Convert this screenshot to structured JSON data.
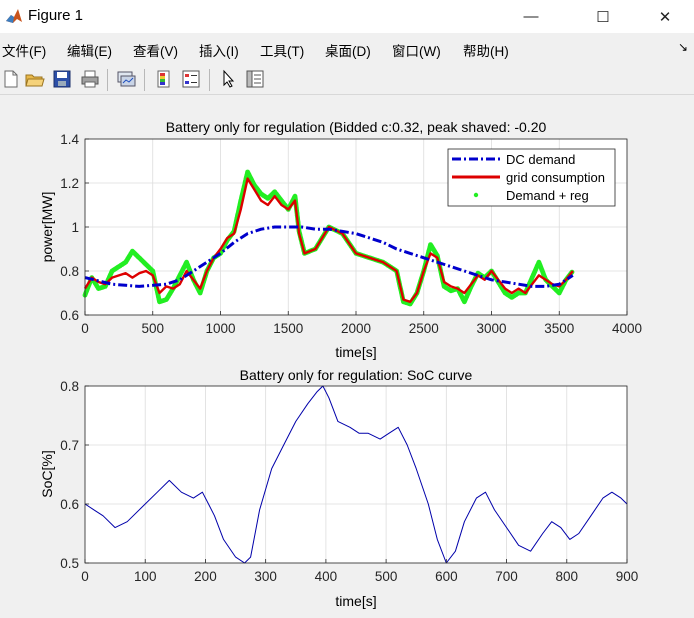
{
  "window": {
    "title": "Figure 1",
    "minimize": "—",
    "maximize": "☐",
    "close": "✕"
  },
  "menu": [
    {
      "label": "文件(F)"
    },
    {
      "label": "编辑(E)"
    },
    {
      "label": "查看(V)"
    },
    {
      "label": "插入(I)"
    },
    {
      "label": "工具(T)"
    },
    {
      "label": "桌面(D)"
    },
    {
      "label": "窗口(W)"
    },
    {
      "label": "帮助(H)"
    }
  ],
  "menu_arrow": "↘",
  "toolbar": [
    {
      "name": "new-figure-icon"
    },
    {
      "name": "open-file-icon"
    },
    {
      "name": "save-icon"
    },
    {
      "name": "print-icon"
    },
    {
      "name": "link-plot-icon"
    },
    {
      "name": "colorbar-icon"
    },
    {
      "name": "legend-icon"
    },
    {
      "name": "pointer-icon"
    },
    {
      "name": "property-editor-icon"
    }
  ],
  "chart_data": [
    {
      "type": "line",
      "title": "Battery only for regulation (Bidded c:0.32, peak shaved: -0.20",
      "xlabel": "time[s]",
      "ylabel": "power[MW]",
      "xlim": [
        0,
        4000
      ],
      "ylim": [
        0.6,
        1.4
      ],
      "xticks": [
        "0",
        "500",
        "1000",
        "1500",
        "2000",
        "2500",
        "3000",
        "3500",
        "4000"
      ],
      "yticks": [
        "0.6",
        "0.8",
        "1",
        "1.2",
        "1.4"
      ],
      "grid": true,
      "legend_position": "top-right",
      "series": [
        {
          "name": "DC demand",
          "color": "#0000cc",
          "style": "dash-dot",
          "x": [
            0,
            200,
            400,
            600,
            700,
            800,
            900,
            1000,
            1100,
            1200,
            1300,
            1400,
            1500,
            1600,
            1700,
            1800,
            1900,
            2000,
            2100,
            2200,
            2300,
            2400,
            2500,
            2600,
            2700,
            2800,
            2900,
            3000,
            3100,
            3200,
            3300,
            3400,
            3500,
            3600
          ],
          "y": [
            0.77,
            0.74,
            0.73,
            0.74,
            0.76,
            0.8,
            0.84,
            0.88,
            0.93,
            0.97,
            0.99,
            1.0,
            1.0,
            1.0,
            0.99,
            0.99,
            0.98,
            0.97,
            0.95,
            0.93,
            0.9,
            0.88,
            0.86,
            0.84,
            0.82,
            0.8,
            0.78,
            0.76,
            0.75,
            0.74,
            0.73,
            0.73,
            0.74,
            0.78
          ]
        },
        {
          "name": "grid consumption",
          "color": "#dd0000",
          "style": "solid",
          "x": [
            0,
            50,
            100,
            150,
            200,
            250,
            300,
            350,
            400,
            450,
            500,
            550,
            600,
            650,
            700,
            750,
            800,
            850,
            900,
            950,
            1000,
            1050,
            1100,
            1150,
            1200,
            1250,
            1300,
            1350,
            1400,
            1450,
            1500,
            1550,
            1580,
            1620,
            1700,
            1800,
            1900,
            2000,
            2100,
            2200,
            2300,
            2350,
            2400,
            2450,
            2500,
            2550,
            2600,
            2650,
            2700,
            2750,
            2800,
            2850,
            2900,
            2950,
            3000,
            3050,
            3100,
            3150,
            3200,
            3250,
            3300,
            3350,
            3400,
            3450,
            3500,
            3550,
            3600
          ],
          "y": [
            0.72,
            0.77,
            0.75,
            0.74,
            0.77,
            0.78,
            0.79,
            0.77,
            0.79,
            0.8,
            0.78,
            0.7,
            0.73,
            0.72,
            0.74,
            0.8,
            0.76,
            0.72,
            0.8,
            0.86,
            0.9,
            0.95,
            0.97,
            1.08,
            1.22,
            1.17,
            1.12,
            1.1,
            1.14,
            1.1,
            1.08,
            1.12,
            0.97,
            0.88,
            0.9,
            1.0,
            0.97,
            0.88,
            0.86,
            0.84,
            0.8,
            0.67,
            0.66,
            0.7,
            0.8,
            0.88,
            0.86,
            0.75,
            0.73,
            0.72,
            0.7,
            0.74,
            0.78,
            0.76,
            0.8,
            0.76,
            0.72,
            0.7,
            0.72,
            0.7,
            0.74,
            0.78,
            0.76,
            0.74,
            0.73,
            0.76,
            0.8
          ]
        },
        {
          "name": "Demand + reg",
          "color": "#22ee22",
          "style": "dots",
          "x": [
            0,
            50,
            100,
            150,
            200,
            250,
            300,
            350,
            400,
            450,
            500,
            550,
            600,
            650,
            700,
            750,
            800,
            850,
            900,
            950,
            1000,
            1050,
            1100,
            1150,
            1200,
            1250,
            1300,
            1350,
            1400,
            1450,
            1500,
            1550,
            1580,
            1620,
            1700,
            1800,
            1900,
            2000,
            2100,
            2200,
            2300,
            2350,
            2400,
            2450,
            2500,
            2550,
            2600,
            2650,
            2700,
            2750,
            2800,
            2850,
            2900,
            2950,
            3000,
            3050,
            3100,
            3150,
            3200,
            3250,
            3300,
            3350,
            3400,
            3450,
            3500,
            3550,
            3600
          ],
          "y": [
            0.69,
            0.77,
            0.72,
            0.73,
            0.8,
            0.82,
            0.84,
            0.89,
            0.86,
            0.83,
            0.8,
            0.66,
            0.67,
            0.72,
            0.78,
            0.84,
            0.76,
            0.7,
            0.8,
            0.86,
            0.88,
            0.94,
            0.98,
            1.12,
            1.25,
            1.19,
            1.15,
            1.13,
            1.16,
            1.12,
            1.08,
            1.14,
            0.98,
            0.88,
            0.9,
            1.0,
            0.97,
            0.88,
            0.86,
            0.84,
            0.8,
            0.66,
            0.65,
            0.7,
            0.8,
            0.92,
            0.87,
            0.73,
            0.71,
            0.72,
            0.66,
            0.73,
            0.79,
            0.77,
            0.8,
            0.75,
            0.7,
            0.68,
            0.7,
            0.7,
            0.77,
            0.84,
            0.76,
            0.73,
            0.7,
            0.76,
            0.8
          ]
        }
      ]
    },
    {
      "type": "line",
      "title": "Battery only for regulation: SoC curve",
      "xlabel": "time[s]",
      "ylabel": "SoC[%]",
      "xlim": [
        0,
        900
      ],
      "ylim": [
        0.5,
        0.8
      ],
      "xticks": [
        "0",
        "100",
        "200",
        "300",
        "400",
        "500",
        "600",
        "700",
        "800",
        "900"
      ],
      "yticks": [
        "0.5",
        "0.6",
        "0.7",
        "0.8"
      ],
      "grid": true,
      "series": [
        {
          "color": "#0000aa",
          "x": [
            0,
            15,
            30,
            50,
            70,
            100,
            120,
            140,
            160,
            180,
            195,
            205,
            215,
            230,
            250,
            265,
            275,
            290,
            310,
            330,
            350,
            370,
            385,
            395,
            405,
            420,
            440,
            455,
            470,
            490,
            505,
            520,
            535,
            550,
            570,
            585,
            600,
            615,
            630,
            650,
            665,
            680,
            700,
            720,
            740,
            760,
            775,
            790,
            805,
            820,
            840,
            860,
            875,
            890,
            900
          ],
          "y": [
            0.6,
            0.59,
            0.58,
            0.56,
            0.57,
            0.6,
            0.62,
            0.64,
            0.62,
            0.61,
            0.62,
            0.6,
            0.58,
            0.54,
            0.51,
            0.5,
            0.51,
            0.59,
            0.66,
            0.7,
            0.74,
            0.77,
            0.79,
            0.8,
            0.78,
            0.74,
            0.73,
            0.72,
            0.72,
            0.71,
            0.72,
            0.73,
            0.7,
            0.66,
            0.6,
            0.54,
            0.5,
            0.52,
            0.57,
            0.61,
            0.62,
            0.59,
            0.56,
            0.53,
            0.52,
            0.55,
            0.57,
            0.56,
            0.54,
            0.55,
            0.58,
            0.61,
            0.62,
            0.61,
            0.6
          ]
        }
      ]
    }
  ]
}
